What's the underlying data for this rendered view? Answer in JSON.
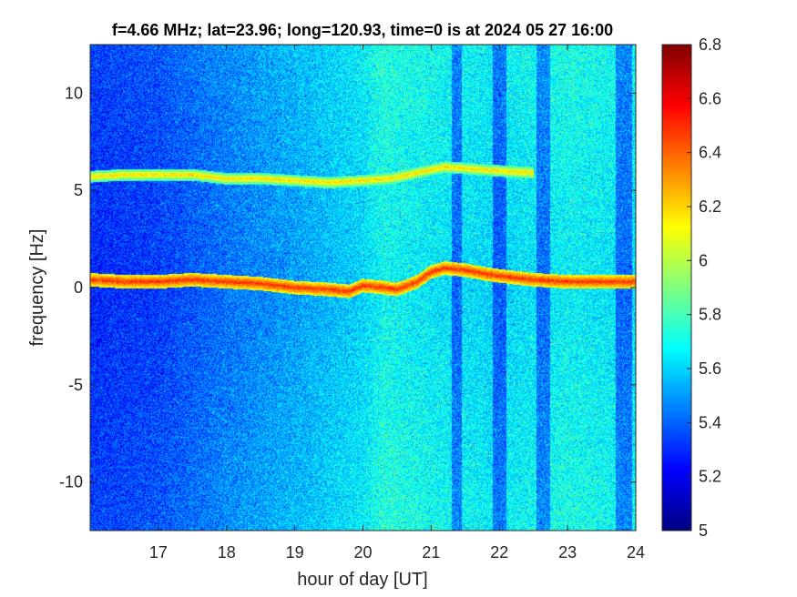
{
  "chart_data": {
    "type": "heatmap",
    "title": "f=4.66 MHz;  lat=23.96; long=120.93, time=0 is at 2024 05 27 16:00",
    "xlabel": "hour of day [UT]",
    "ylabel": "frequency [Hz]",
    "xlim": [
      16.0,
      24.0
    ],
    "ylim": [
      -12.5,
      12.5
    ],
    "xticks": [
      17,
      18,
      19,
      20,
      21,
      22,
      23,
      24
    ],
    "xtick_labels": [
      "17",
      "18",
      "19",
      "20",
      "21",
      "22",
      "23",
      "24"
    ],
    "yticks": [
      10,
      5,
      0,
      -5,
      -10
    ],
    "ytick_labels": [
      "10",
      "5",
      "0",
      "-5",
      "-10"
    ],
    "colorbar": {
      "colormap": "jet",
      "clim": [
        5.0,
        6.8
      ],
      "ticks": [
        6.8,
        6.6,
        6.4,
        6.2,
        6.0,
        5.8,
        5.6,
        5.4,
        5.2,
        5.0
      ],
      "tick_labels": [
        "6.8",
        "6.6",
        "6.4",
        "6.2",
        "6",
        "5.8",
        "5.6",
        "5.4",
        "5.2",
        "5"
      ]
    },
    "features": {
      "doppler_trace_main": {
        "x": [
          16.0,
          16.5,
          17.0,
          17.5,
          18.0,
          18.5,
          19.0,
          19.5,
          19.8,
          20.0,
          20.3,
          20.5,
          20.8,
          21.0,
          21.2,
          21.5,
          21.8,
          22.0,
          22.5,
          23.0
        ],
        "y": [
          0.4,
          0.3,
          0.3,
          0.4,
          0.3,
          0.2,
          0.0,
          -0.1,
          -0.2,
          0.1,
          0.0,
          -0.1,
          0.3,
          0.8,
          1.0,
          0.9,
          0.7,
          0.6,
          0.4,
          0.3
        ],
        "value": 6.5
      },
      "doppler_trace_upper": {
        "x": [
          16.0,
          16.5,
          17.0,
          17.5,
          18.0,
          18.5,
          19.0,
          19.5,
          20.0,
          20.4,
          20.8,
          21.2,
          22.0,
          22.5
        ],
        "y": [
          5.7,
          5.8,
          5.8,
          5.8,
          5.6,
          5.6,
          5.5,
          5.4,
          5.5,
          5.6,
          5.9,
          6.2,
          6.0,
          5.9
        ],
        "value": 6.2
      },
      "dark_bands": [
        [
          21.3,
          21.45
        ],
        [
          21.9,
          22.1
        ],
        [
          22.55,
          22.75
        ],
        [
          23.7,
          23.95
        ]
      ],
      "noise_trend": {
        "x": [
          16.0,
          17.0,
          18.0,
          19.0,
          20.0,
          20.3,
          21.0,
          22.0,
          23.0,
          24.0
        ],
        "level": [
          5.28,
          5.32,
          5.42,
          5.5,
          5.6,
          5.68,
          5.64,
          5.6,
          5.66,
          5.62
        ]
      }
    }
  }
}
